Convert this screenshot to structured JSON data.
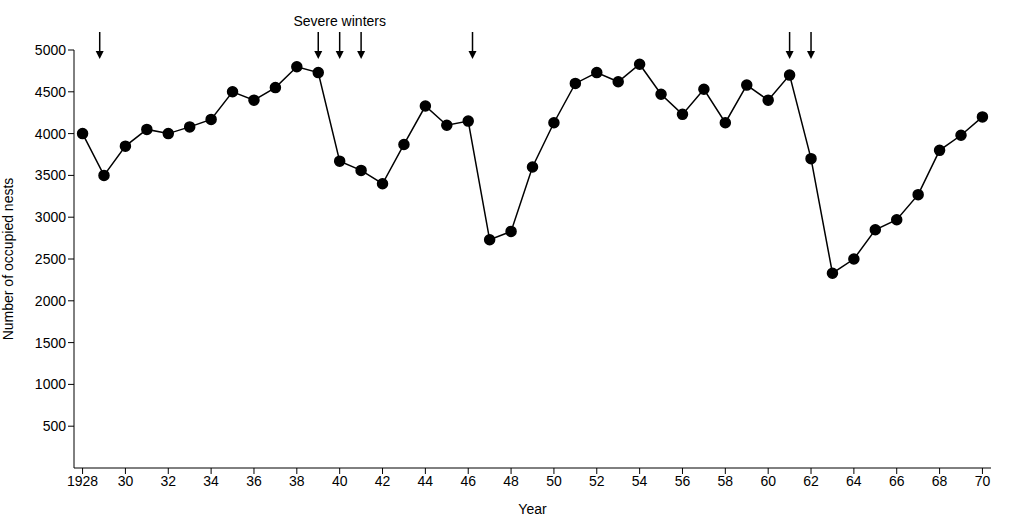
{
  "chart_data": {
    "type": "line",
    "x": [
      1928,
      1929,
      1930,
      1931,
      1932,
      1933,
      1934,
      1935,
      1936,
      1937,
      1938,
      1939,
      1940,
      1941,
      1942,
      1943,
      1944,
      1945,
      1946,
      1947,
      1948,
      1949,
      1950,
      1951,
      1952,
      1953,
      1954,
      1955,
      1956,
      1957,
      1958,
      1959,
      1960,
      1961,
      1962,
      1963,
      1964,
      1965,
      1966,
      1967,
      1968,
      1969,
      1970
    ],
    "values": [
      4000,
      3500,
      3850,
      4050,
      4000,
      4080,
      4170,
      4500,
      4400,
      4550,
      4800,
      4730,
      3670,
      3560,
      3400,
      3870,
      4330,
      4100,
      4150,
      2730,
      2830,
      3600,
      4130,
      4600,
      4730,
      4620,
      4830,
      4470,
      4230,
      4530,
      4130,
      4580,
      4400,
      4700,
      3700,
      2330,
      2500,
      2850,
      2970,
      3270,
      3800,
      3980,
      4200
    ],
    "color": "#000000",
    "marker": "circle",
    "xlabel": "Year",
    "ylabel": "Number of occupied nests",
    "xlim": [
      1927.6,
      1970.4
    ],
    "xticks": [
      1928,
      {
        "value": 1930,
        "label": "30"
      },
      {
        "value": 1932,
        "label": "32"
      },
      {
        "value": 1934,
        "label": "34"
      },
      {
        "value": 1936,
        "label": "36"
      },
      {
        "value": 1938,
        "label": "38"
      },
      {
        "value": 1940,
        "label": "40"
      },
      {
        "value": 1942,
        "label": "42"
      },
      {
        "value": 1944,
        "label": "44"
      },
      {
        "value": 1946,
        "label": "46"
      },
      {
        "value": 1948,
        "label": "48"
      },
      {
        "value": 1950,
        "label": "50"
      },
      {
        "value": 1952,
        "label": "52"
      },
      {
        "value": 1954,
        "label": "54"
      },
      {
        "value": 1956,
        "label": "56"
      },
      {
        "value": 1958,
        "label": "58"
      },
      {
        "value": 1960,
        "label": "60"
      },
      {
        "value": 1962,
        "label": "62"
      },
      {
        "value": 1964,
        "label": "64"
      },
      {
        "value": 1966,
        "label": "66"
      },
      {
        "value": 1968,
        "label": "68"
      },
      {
        "value": 1970,
        "label": "70"
      }
    ],
    "ylim": [
      0,
      5000
    ],
    "yticks": [
      500,
      1000,
      1500,
      2000,
      2500,
      3000,
      3500,
      4000,
      4500,
      5000
    ],
    "grid": false,
    "annotations": [
      {
        "text": "Severe winters",
        "x": [
          1928.8,
          1939,
          1940,
          1941,
          1946.2,
          1961,
          1962
        ]
      }
    ]
  }
}
